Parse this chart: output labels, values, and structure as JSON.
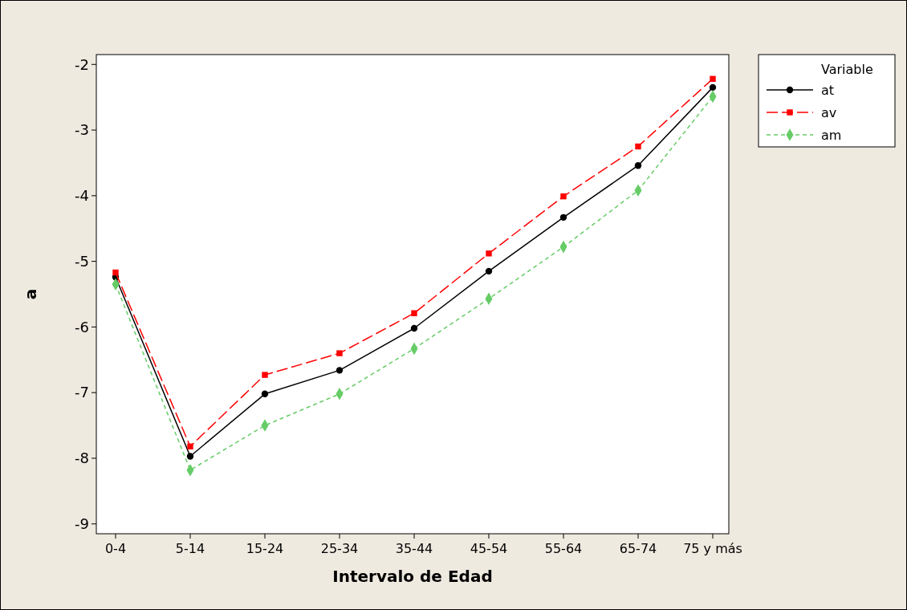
{
  "chart_data": {
    "type": "line",
    "xlabel": "Intervalo de Edad",
    "ylabel": "a",
    "legend_title": "Variable",
    "legend": "top right",
    "grid": false,
    "categories": [
      "0-4",
      "5-14",
      "15-24",
      "25-34",
      "35-44",
      "45-54",
      "55-64",
      "65-74",
      "75 y más"
    ],
    "ylim": [
      -9.15,
      -1.85
    ],
    "yticks": [
      -9,
      -8,
      -7,
      -6,
      -5,
      -4,
      -3,
      -2
    ],
    "series": [
      {
        "name": "at",
        "color": "#000000",
        "marker": "circle",
        "line_style": "solid",
        "values": [
          -5.24,
          -7.97,
          -7.02,
          -6.66,
          -6.02,
          -5.15,
          -4.33,
          -3.54,
          -2.35
        ]
      },
      {
        "name": "av",
        "color": "#ff0000",
        "marker": "square",
        "line_style": "dashed",
        "values": [
          -5.17,
          -7.82,
          -6.73,
          -6.4,
          -5.79,
          -4.88,
          -4.01,
          -3.25,
          -2.22
        ]
      },
      {
        "name": "am",
        "color": "#66cc66",
        "marker": "diamond",
        "line_style": "dotted",
        "values": [
          -5.35,
          -8.18,
          -7.5,
          -7.02,
          -6.33,
          -5.57,
          -4.78,
          -3.92,
          -2.49
        ]
      }
    ]
  }
}
